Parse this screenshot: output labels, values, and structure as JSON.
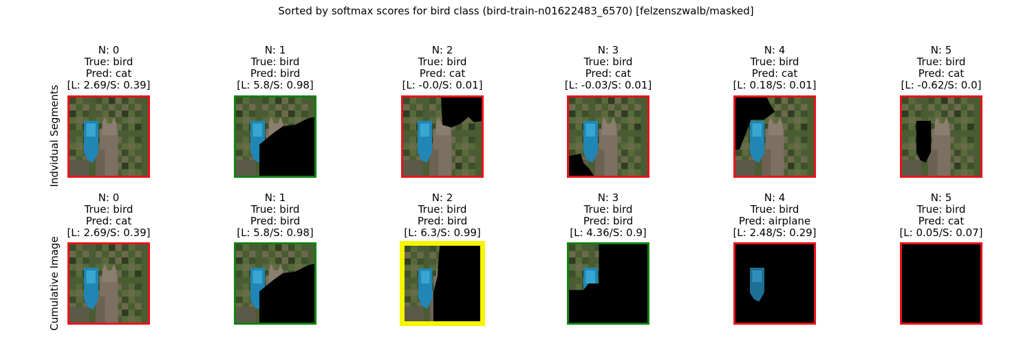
{
  "title": "Sorted by softmax scores for bird class (bird-train-n01622483_6570) [felzenszwalb/masked]",
  "colors": {
    "red": "#e8141a",
    "green": "#138013",
    "yellow": "#f5f500"
  },
  "rows": [
    {
      "label": "Indvidual Segments",
      "cells": [
        {
          "n": "N: 0",
          "true": "True: bird",
          "pred": "Pred: cat",
          "score": "[L: 2.69/S: 0.39]",
          "border": "red",
          "mask": "full"
        },
        {
          "n": "N: 1",
          "true": "True: bird",
          "pred": "Pred: bird",
          "score": "[L: 5.8/S: 0.98]",
          "border": "green",
          "mask": "top-left"
        },
        {
          "n": "N: 2",
          "true": "True: bird",
          "pred": "Pred: cat",
          "score": "[L: -0.0/S: 0.01]",
          "border": "red",
          "mask": "no-top-right"
        },
        {
          "n": "N: 3",
          "true": "True: bird",
          "pred": "Pred: cat",
          "score": "[L: -0.03/S: 0.01]",
          "border": "red",
          "mask": "no-bottom-left"
        },
        {
          "n": "N: 4",
          "true": "True: bird",
          "pred": "Pred: cat",
          "score": "[L: 0.18/S: 0.01]",
          "border": "red",
          "mask": "no-left"
        },
        {
          "n": "N: 5",
          "true": "True: bird",
          "pred": "Pred: cat",
          "score": "[L: -0.62/S: 0.0]",
          "border": "red",
          "mask": "no-bird"
        }
      ]
    },
    {
      "label": "Cumulative Image",
      "cells": [
        {
          "n": "N: 0",
          "true": "True: bird",
          "pred": "Pred: cat",
          "score": "[L: 2.69/S: 0.39]",
          "border": "red",
          "mask": "full"
        },
        {
          "n": "N: 1",
          "true": "True: bird",
          "pred": "Pred: bird",
          "score": "[L: 5.8/S: 0.98]",
          "border": "green",
          "mask": "top-left"
        },
        {
          "n": "N: 2",
          "true": "True: bird",
          "pred": "Pred: bird",
          "score": "[L: 6.3/S: 0.99]",
          "border": "yellow",
          "mask": "left-strip"
        },
        {
          "n": "N: 3",
          "true": "True: bird",
          "pred": "Pred: bird",
          "score": "[L: 4.36/S: 0.9]",
          "border": "green",
          "mask": "left-bird"
        },
        {
          "n": "N: 4",
          "true": "True: bird",
          "pred": "Pred: airplane",
          "score": "[L: 2.48/S: 0.29]",
          "border": "red",
          "mask": "bird-only"
        },
        {
          "n": "N: 5",
          "true": "True: bird",
          "pred": "Pred: cat",
          "score": "[L: 0.05/S: 0.07]",
          "border": "red",
          "mask": "empty"
        }
      ]
    }
  ]
}
